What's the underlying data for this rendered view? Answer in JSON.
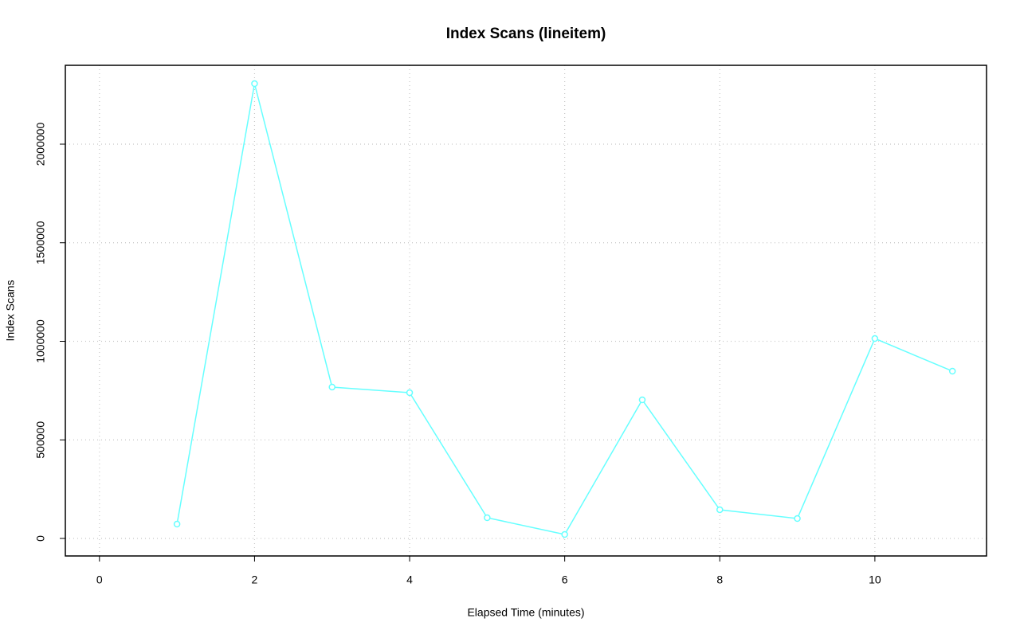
{
  "chart_data": {
    "type": "line",
    "title": "Index Scans (lineitem)",
    "x_label": "Elapsed Time (minutes)",
    "y_label": "Index Scans",
    "x": [
      1,
      2,
      3,
      4,
      5,
      6,
      7,
      8,
      9,
      10,
      11
    ],
    "series": [
      {
        "name": "Index Scans",
        "color": "#66ffff",
        "values": [
          72700,
          2307000,
          767700,
          739400,
          105000,
          20200,
          703000,
          145500,
          101000,
          1014000,
          848500
        ]
      }
    ],
    "xlim": [
      -0.44,
      11.44
    ],
    "xticks": [
      0,
      2,
      4,
      6,
      8,
      10
    ],
    "ylim": [
      -88900,
      2400000
    ],
    "yticks": [
      0,
      500000,
      1000000,
      1500000,
      2000000
    ],
    "grid": true
  }
}
